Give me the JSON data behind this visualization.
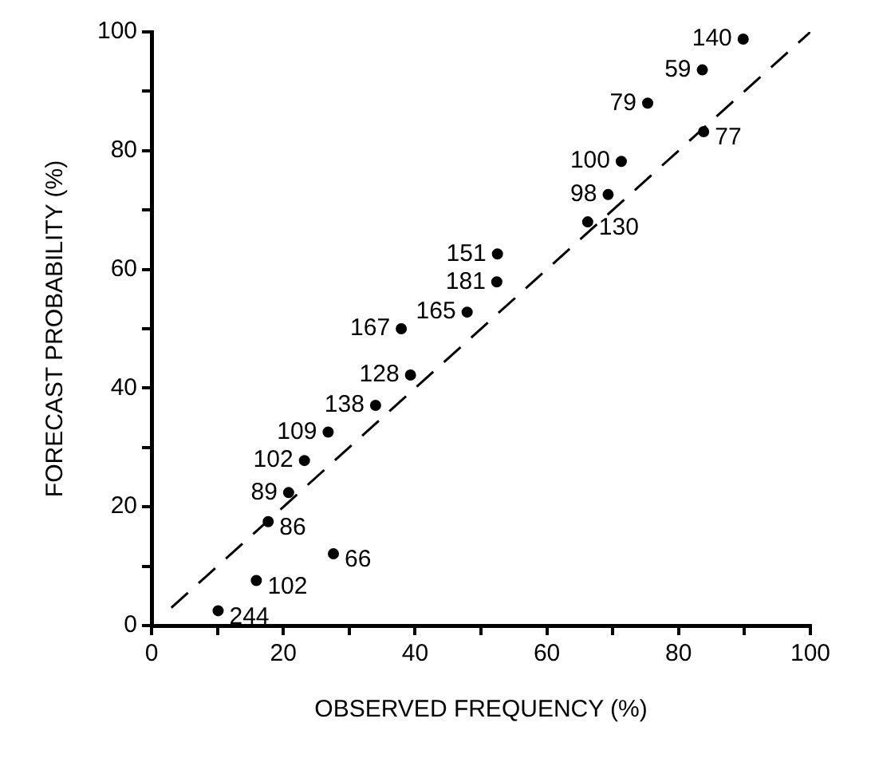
{
  "chart_data": {
    "type": "scatter",
    "xlabel": "OBSERVED FREQUENCY (%)",
    "ylabel": "FORECAST PROBABILITY (%)",
    "xlim": [
      0,
      100
    ],
    "ylim": [
      0,
      100
    ],
    "xticks": [
      0,
      {
        "value": 10,
        "label": null
      },
      20,
      {
        "value": 30,
        "label": null
      },
      40,
      {
        "value": 50,
        "label": null
      },
      60,
      {
        "value": 70,
        "label": null
      },
      80,
      {
        "value": 90,
        "label": null
      },
      100
    ],
    "yticks": [
      0,
      {
        "value": 10,
        "label": null
      },
      20,
      {
        "value": 30,
        "label": null
      },
      40,
      {
        "value": 50,
        "label": null
      },
      60,
      {
        "value": 70,
        "label": null
      },
      80,
      {
        "value": 90,
        "label": null
      },
      100
    ],
    "series": [
      {
        "marker": "circle",
        "color": "#000000",
        "x": [
          89.8,
          83.6,
          75.3,
          83.8,
          71.3,
          69.3,
          66.2,
          52.5,
          52.4,
          47.9,
          37.9,
          39.3,
          34,
          26.8,
          23.2,
          20.8,
          17.7,
          27.6,
          15.9,
          10.1
        ],
        "values": [
          98.8,
          93.6,
          88,
          83.2,
          78.2,
          72.6,
          68,
          62.6,
          57.9,
          52.8,
          50,
          42.2,
          37.1,
          32.6,
          27.8,
          22.4,
          17.5,
          12.1,
          7.6,
          2.5
        ]
      },
      {
        "type": "line",
        "marker": "none",
        "color": "#000000",
        "line_style": "dashed",
        "x": [
          3,
          100
        ],
        "values": [
          3,
          100
        ]
      }
    ],
    "annotations": [
      {
        "text": "140",
        "x": 89.8,
        "y": 98.8
      },
      {
        "text": "59",
        "x": 83.6,
        "y": 93.6
      },
      {
        "text": "79",
        "x": 75.3,
        "y": 88
      },
      {
        "text": "77",
        "x": 83.8,
        "y": 83.2
      },
      {
        "text": "100",
        "x": 71.3,
        "y": 78.2
      },
      {
        "text": "98",
        "x": 69.3,
        "y": 72.6
      },
      {
        "text": "130",
        "x": 66.2,
        "y": 68
      },
      {
        "text": "151",
        "x": 52.5,
        "y": 62.6
      },
      {
        "text": "181",
        "x": 52.4,
        "y": 57.9
      },
      {
        "text": "165",
        "x": 47.9,
        "y": 52.8
      },
      {
        "text": "167",
        "x": 37.9,
        "y": 50
      },
      {
        "text": "128",
        "x": 39.3,
        "y": 42.2
      },
      {
        "text": "138",
        "x": 34,
        "y": 37.1
      },
      {
        "text": "109",
        "x": 26.8,
        "y": 32.6
      },
      {
        "text": "102",
        "x": 23.2,
        "y": 27.8
      },
      {
        "text": "89",
        "x": 20.8,
        "y": 22.4
      },
      {
        "text": "86",
        "x": 17.7,
        "y": 17.5
      },
      {
        "text": "66",
        "x": 27.6,
        "y": 12.1
      },
      {
        "text": "102",
        "x": 15.9,
        "y": 7.6
      },
      {
        "text": "244",
        "x": 10.1,
        "y": 2.5
      }
    ]
  }
}
